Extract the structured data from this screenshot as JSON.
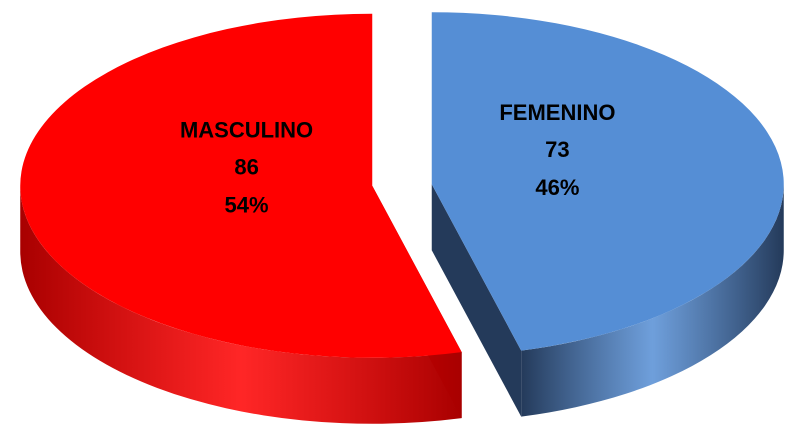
{
  "chart_data": {
    "type": "pie",
    "categories": [
      "MASCULINO",
      "FEMENINO"
    ],
    "values": [
      86,
      73
    ],
    "percentages": [
      {
        "value": 54,
        "label": "54%"
      },
      {
        "value": 46,
        "label": "46%"
      }
    ],
    "colors": [
      "#ff0000",
      "#558ed5"
    ],
    "side_colors": [
      "#a80000",
      "#243a5a"
    ]
  }
}
